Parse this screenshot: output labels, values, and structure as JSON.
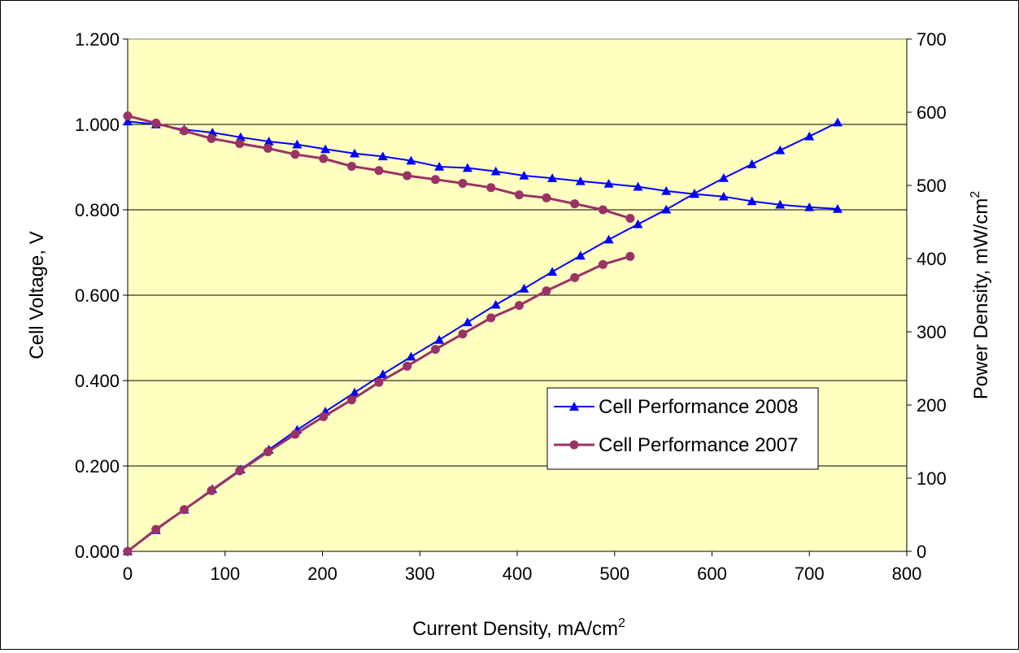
{
  "chart_data": {
    "type": "line",
    "xlabel": "Current Density, mA/cm",
    "xlabel_sup": "2",
    "ylabel": "Cell Voltage, V",
    "y2label": "Power Density, mW/cm",
    "y2label_sup": "2",
    "xlim": [
      0,
      800
    ],
    "ylim": [
      0,
      1.2
    ],
    "y2lim": [
      0,
      700
    ],
    "x_ticks": [
      "0",
      "100",
      "200",
      "300",
      "400",
      "500",
      "600",
      "700",
      "800"
    ],
    "y_ticks": [
      "0.000",
      "0.200",
      "0.400",
      "0.600",
      "0.800",
      "1.000",
      "1.200"
    ],
    "y2_ticks": [
      "0",
      "100",
      "200",
      "300",
      "400",
      "500",
      "600",
      "700"
    ],
    "grid": "horizontal",
    "plot_background": "#FFFFC0",
    "legend_position": "right-center",
    "series": [
      {
        "name": "Cell Performance 2008",
        "color": "#0000FF",
        "marker": "triangle",
        "axis": "left",
        "x": [
          0,
          29,
          58,
          87,
          116,
          145,
          174,
          203,
          233,
          262,
          291,
          320,
          349,
          378,
          407,
          436,
          465,
          494,
          524,
          553,
          582,
          612,
          641,
          670,
          700,
          729
        ],
        "values": [
          1.007,
          1.0,
          0.988,
          0.981,
          0.97,
          0.96,
          0.953,
          0.942,
          0.932,
          0.925,
          0.915,
          0.901,
          0.898,
          0.89,
          0.88,
          0.874,
          0.867,
          0.861,
          0.854,
          0.844,
          0.837,
          0.831,
          0.82,
          0.812,
          0.806,
          0.802
        ]
      },
      {
        "name": "Cell Performance 2008",
        "color": "#0000FF",
        "marker": "triangle",
        "axis": "right",
        "x": [
          0,
          29,
          58,
          87,
          116,
          145,
          174,
          203,
          233,
          262,
          291,
          320,
          349,
          378,
          407,
          436,
          465,
          494,
          524,
          553,
          582,
          612,
          641,
          670,
          700,
          729
        ],
        "values": [
          0,
          29,
          57,
          85,
          112,
          139,
          166,
          191,
          217,
          242,
          266,
          289,
          313,
          337,
          359,
          382,
          404,
          426,
          447,
          467,
          489,
          510,
          529,
          548,
          567,
          586
        ]
      },
      {
        "name": "Cell Performance 2007",
        "color": "#993366",
        "marker": "circle",
        "axis": "left",
        "x": [
          0,
          29,
          58,
          86,
          115,
          144,
          172,
          201,
          230,
          258,
          287,
          316,
          344,
          373,
          402,
          430,
          459,
          488,
          516
        ],
        "values": [
          1.02,
          1.003,
          0.985,
          0.967,
          0.955,
          0.944,
          0.93,
          0.92,
          0.902,
          0.892,
          0.88,
          0.871,
          0.862,
          0.852,
          0.835,
          0.828,
          0.814,
          0.8,
          0.78
        ]
      },
      {
        "name": "Cell Performance 2007",
        "color": "#993366",
        "marker": "circle",
        "axis": "right",
        "x": [
          0,
          29,
          58,
          86,
          115,
          144,
          172,
          201,
          230,
          258,
          287,
          316,
          344,
          373,
          402,
          430,
          459,
          488,
          516
        ],
        "values": [
          0,
          30,
          57,
          83,
          110,
          136,
          160,
          184,
          207,
          231,
          253,
          276,
          297,
          319,
          336,
          356,
          374,
          392,
          403
        ]
      }
    ],
    "legend": [
      {
        "label": "Cell Performance 2008",
        "color": "#0000FF",
        "marker": "triangle"
      },
      {
        "label": "Cell Performance 2007",
        "color": "#993366",
        "marker": "circle"
      }
    ]
  }
}
